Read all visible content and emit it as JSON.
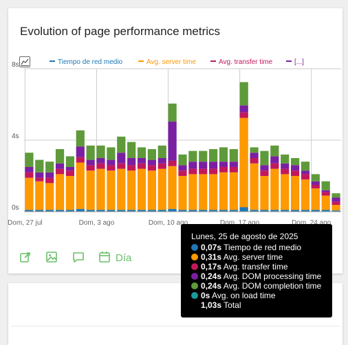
{
  "card": {
    "title": "Evolution of page performance metrics"
  },
  "legend": {
    "items": [
      {
        "label": "Tiempo de red medio",
        "color": "#1f77b4"
      },
      {
        "label": "Avg. server time",
        "color": "#ff9900"
      },
      {
        "label": "Avg. transfer time",
        "color": "#c2185b"
      },
      {
        "label": "[...]",
        "color": "#7b1fa2"
      }
    ]
  },
  "toolbar": {
    "period_label": "Día",
    "icons": [
      "export-icon",
      "image-icon",
      "comment-icon",
      "calendar-icon"
    ]
  },
  "tooltip": {
    "date": "Lunes, 25 de agosto de 2025",
    "rows": [
      {
        "value": "0,07s",
        "label": "Tiempo de red medio",
        "color": "#1f77b4"
      },
      {
        "value": "0,31s",
        "label": "Avg. server time",
        "color": "#ff9900"
      },
      {
        "value": "0,17s",
        "label": "Avg. transfer time",
        "color": "#c2185b"
      },
      {
        "value": "0,24s",
        "label": "Avg. DOM processing time",
        "color": "#7b1fa2"
      },
      {
        "value": "0,24s",
        "label": "Avg. DOM completion time",
        "color": "#5e9a3a"
      },
      {
        "value": "0s",
        "label": "Avg. on load time",
        "color": "#1a9a9a"
      }
    ],
    "total_value": "1,03s",
    "total_label": "Total"
  },
  "chart_data": {
    "type": "bar",
    "stacked": true,
    "y_ticks": [
      "0s",
      "4s",
      "8s"
    ],
    "ylim": [
      0,
      8
    ],
    "x_tick_labels": [
      {
        "index": 0,
        "label": "Dom, 27 jul"
      },
      {
        "index": 7,
        "label": "Dom, 3 ago"
      },
      {
        "index": 14,
        "label": "Dom, 10 ago"
      },
      {
        "index": 21,
        "label": "Dom, 17 ago"
      },
      {
        "index": 28,
        "label": "Dom, 24 ago"
      }
    ],
    "categories": [
      "d01",
      "d02",
      "d03",
      "d04",
      "d05",
      "d06",
      "d07",
      "d08",
      "d09",
      "d10",
      "d11",
      "d12",
      "d13",
      "d14",
      "d15",
      "d16",
      "d17",
      "d18",
      "d19",
      "d20",
      "d21",
      "d22",
      "d23",
      "d24",
      "d25",
      "d26",
      "d27",
      "d28",
      "d29",
      "d30",
      "d31"
    ],
    "series": [
      {
        "name": "Tiempo de red medio",
        "color": "#1f77b4",
        "values": [
          0.1,
          0.1,
          0.1,
          0.1,
          0.1,
          0.15,
          0.1,
          0.1,
          0.1,
          0.1,
          0.1,
          0.1,
          0.1,
          0.1,
          0.15,
          0.1,
          0.1,
          0.1,
          0.1,
          0.1,
          0.1,
          0.25,
          0.1,
          0.1,
          0.1,
          0.1,
          0.1,
          0.1,
          0.1,
          0.1,
          0.07
        ]
      },
      {
        "name": "Avg. server time",
        "color": "#ff9900",
        "values": [
          1.8,
          1.6,
          1.5,
          2.0,
          1.9,
          2.6,
          2.2,
          2.3,
          2.2,
          2.3,
          2.2,
          2.3,
          2.2,
          2.3,
          2.4,
          1.9,
          2.0,
          2.0,
          2.0,
          2.1,
          2.1,
          5.0,
          2.6,
          1.9,
          2.3,
          2.0,
          1.9,
          1.7,
          1.2,
          0.8,
          0.31
        ]
      },
      {
        "name": "Avg. transfer time",
        "color": "#c2185b",
        "values": [
          0.3,
          0.2,
          0.3,
          0.3,
          0.3,
          0.3,
          0.3,
          0.3,
          0.3,
          0.3,
          0.3,
          0.3,
          0.3,
          0.3,
          0.3,
          0.3,
          0.3,
          0.3,
          0.3,
          0.3,
          0.3,
          0.3,
          0.3,
          0.3,
          0.3,
          0.3,
          0.3,
          0.3,
          0.2,
          0.2,
          0.17
        ]
      },
      {
        "name": "Avg. DOM processing time",
        "color": "#7b1fa2",
        "values": [
          0.3,
          0.3,
          0.3,
          0.3,
          0.2,
          0.6,
          0.3,
          0.3,
          0.3,
          0.6,
          0.4,
          0.3,
          0.3,
          0.3,
          2.2,
          0.3,
          0.4,
          0.4,
          0.4,
          0.3,
          0.3,
          0.4,
          0.3,
          0.3,
          0.4,
          0.3,
          0.3,
          0.2,
          0.2,
          0.1,
          0.24
        ]
      },
      {
        "name": "Avg. DOM completion time",
        "color": "#5e9a3a",
        "values": [
          0.8,
          0.7,
          0.6,
          0.8,
          0.6,
          0.9,
          0.8,
          0.7,
          0.7,
          0.9,
          0.9,
          0.6,
          0.6,
          0.7,
          1.0,
          0.6,
          0.6,
          0.6,
          0.7,
          0.8,
          0.7,
          1.3,
          0.3,
          0.8,
          0.6,
          0.5,
          0.4,
          0.5,
          0.4,
          0.5,
          0.24
        ]
      },
      {
        "name": "Avg. on load time",
        "color": "#1a9a9a",
        "values": [
          0,
          0,
          0,
          0,
          0,
          0,
          0,
          0,
          0,
          0,
          0,
          0,
          0,
          0,
          0,
          0,
          0,
          0,
          0,
          0,
          0,
          0,
          0,
          0,
          0,
          0,
          0,
          0,
          0,
          0,
          0
        ]
      }
    ]
  }
}
